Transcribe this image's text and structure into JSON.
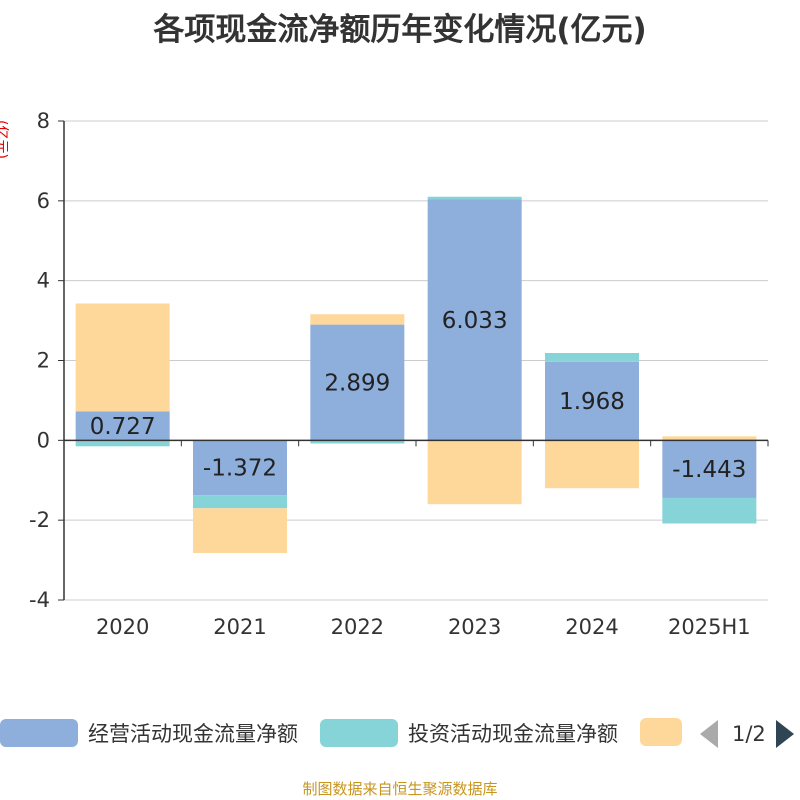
{
  "title": "各项现金流净额历年变化情况(亿元)",
  "unit_label": "(亿元)",
  "source": "制图数据来自恒生聚源数据库",
  "legend": {
    "items": [
      {
        "label": "经营活动现金流量净额",
        "color": "#8eaedb"
      },
      {
        "label": "投资活动现金流量净额",
        "color": "#86d4d8"
      },
      {
        "label": "",
        "color": "#fdd89a"
      }
    ],
    "page": "1/2"
  },
  "chart_data": {
    "type": "bar",
    "stacked": true,
    "categories": [
      "2020",
      "2021",
      "2022",
      "2023",
      "2024",
      "2025H1"
    ],
    "ylim": [
      -4,
      8
    ],
    "yticks": [
      -4,
      -2,
      0,
      2,
      4,
      6,
      8
    ],
    "ylabel": "(亿元)",
    "grid": true,
    "legend_position": "bottom",
    "series": [
      {
        "name": "经营活动现金流量净额",
        "color": "#8eaedb",
        "values": [
          0.727,
          -1.372,
          2.899,
          6.033,
          1.968,
          -1.443
        ],
        "data_labels": [
          "0.727",
          "-1.372",
          "2.899",
          "6.033",
          "1.968",
          "-1.443"
        ]
      },
      {
        "name": "投资活动现金流量净额",
        "color": "#86d4d8",
        "values": [
          -0.15,
          -0.33,
          -0.08,
          0.07,
          0.22,
          -0.64
        ]
      },
      {
        "color": "#fdd89a",
        "values": [
          2.7,
          -1.12,
          0.26,
          -1.6,
          -1.2,
          0.1
        ]
      }
    ]
  }
}
